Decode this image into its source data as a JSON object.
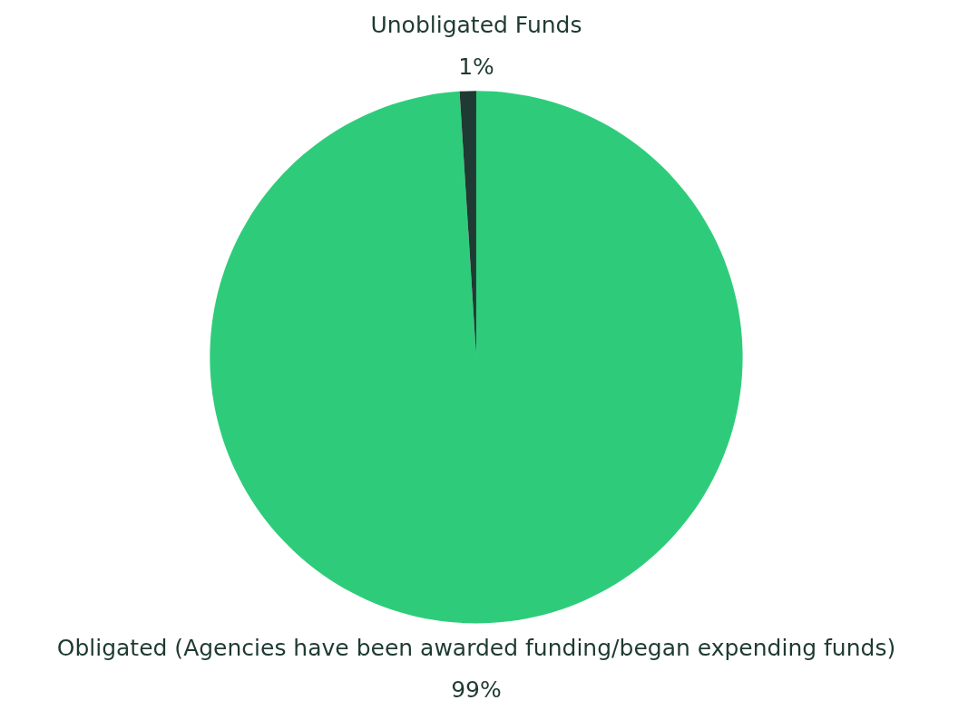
{
  "chart_data": {
    "type": "pie",
    "categories": [
      "Obligated (Agencies have been awarded funding/began expending funds)",
      "Unobligated Funds"
    ],
    "values": [
      99,
      1
    ],
    "colors": [
      "#2ecc7a",
      "#1e3a32"
    ],
    "value_labels": [
      "99%",
      "1%"
    ],
    "legend": false
  }
}
